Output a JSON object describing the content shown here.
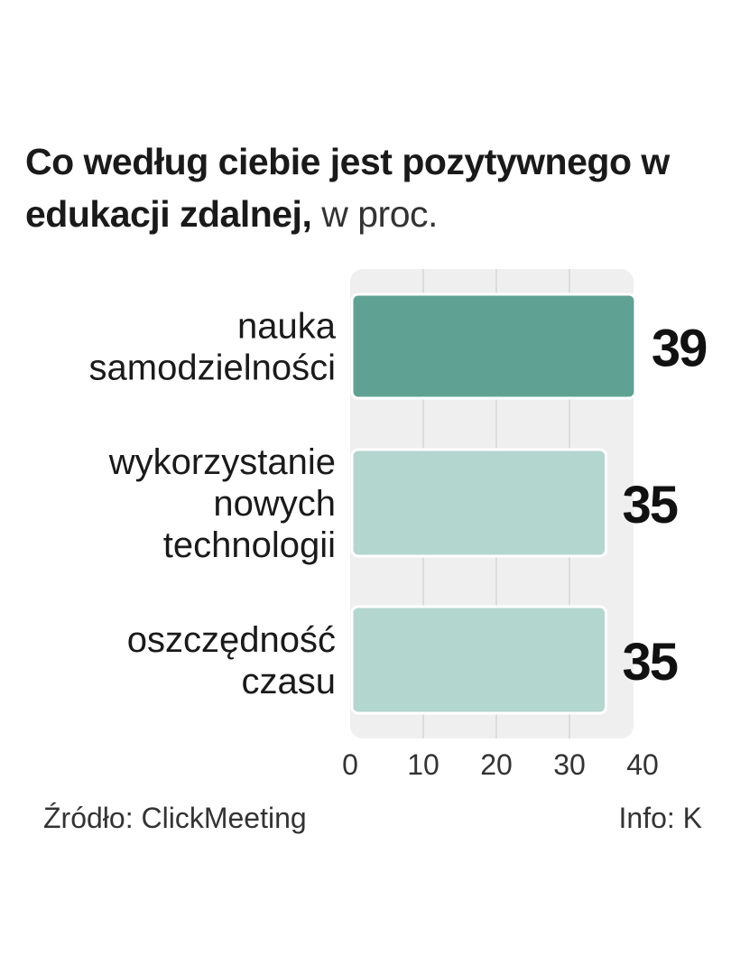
{
  "title": {
    "bold": "Co według ciebie jest pozytywnego w edukacji zdalnej,",
    "light": " w proc."
  },
  "chart_data": {
    "type": "bar",
    "orientation": "horizontal",
    "categories": [
      [
        "nauka",
        "samodzielności"
      ],
      [
        "wykorzystanie",
        "nowych",
        "technologii"
      ],
      [
        "oszczędność",
        "czasu"
      ]
    ],
    "values": [
      39,
      35,
      35
    ],
    "value_labels": [
      "39",
      "35",
      "35"
    ],
    "xlim": [
      0,
      40
    ],
    "xticks": [
      "0",
      "10",
      "20",
      "30",
      "40"
    ],
    "grid": true,
    "colors": {
      "highlight": "#5fa294",
      "normal": "#b3d6cf",
      "panel": "#efefef",
      "grid": "#d6d6d6"
    }
  },
  "footer": {
    "source": "Źródło: ClickMeeting",
    "info": "Info: K"
  }
}
